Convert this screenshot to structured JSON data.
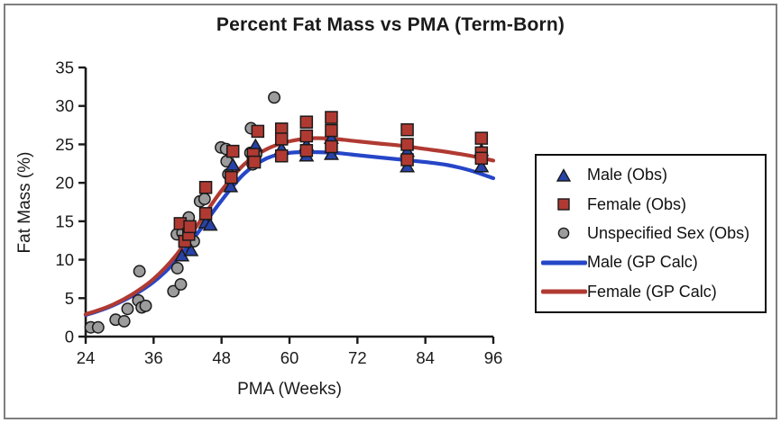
{
  "chart_data": {
    "type": "scatter",
    "title": "Percent Fat Mass vs PMA (Term-Born)",
    "xlabel": "PMA (Weeks)",
    "ylabel": "Fat Mass (%)",
    "xlim": [
      24,
      96
    ],
    "ylim": [
      0,
      35
    ],
    "x_ticks": [
      24,
      36,
      48,
      60,
      72,
      84,
      96
    ],
    "y_ticks": [
      0,
      5,
      10,
      15,
      20,
      25,
      30,
      35
    ],
    "grid": false,
    "legend_position": "right-outside",
    "axis_color": "#1a1a1a",
    "marker_edge_color": "#1a1a1a",
    "series": [
      {
        "name": "Male (Obs)",
        "type": "scatter",
        "marker": "triangle",
        "color": "#2742A8",
        "points": [
          [
            41.0,
            10.5
          ],
          [
            42.6,
            11.2
          ],
          [
            45.2,
            14.8
          ],
          [
            46.0,
            14.5
          ],
          [
            49.6,
            19.5
          ],
          [
            50.0,
            22.3
          ],
          [
            54.0,
            24.8
          ],
          [
            58.6,
            24.4
          ],
          [
            63.0,
            24.9
          ],
          [
            63.0,
            23.5
          ],
          [
            67.4,
            25.8
          ],
          [
            67.4,
            23.7
          ],
          [
            80.8,
            24.1
          ],
          [
            80.8,
            22.1
          ],
          [
            93.9,
            24.2
          ],
          [
            93.9,
            22.1
          ]
        ]
      },
      {
        "name": "Female (Obs)",
        "type": "scatter",
        "marker": "square",
        "color": "#B03A32",
        "points": [
          [
            40.7,
            14.7
          ],
          [
            41.5,
            12.4
          ],
          [
            42.2,
            13.3
          ],
          [
            42.4,
            14.3
          ],
          [
            45.2,
            19.4
          ],
          [
            45.2,
            16.0
          ],
          [
            49.7,
            20.7
          ],
          [
            50.0,
            24.1
          ],
          [
            53.6,
            23.7
          ],
          [
            53.8,
            22.7
          ],
          [
            54.4,
            26.7
          ],
          [
            58.6,
            27.0
          ],
          [
            58.6,
            25.7
          ],
          [
            58.6,
            23.5
          ],
          [
            63.0,
            27.9
          ],
          [
            63.0,
            26.1
          ],
          [
            63.0,
            24.2
          ],
          [
            67.4,
            28.5
          ],
          [
            67.4,
            26.8
          ],
          [
            67.4,
            24.7
          ],
          [
            80.8,
            26.9
          ],
          [
            80.8,
            25.0
          ],
          [
            80.8,
            23.0
          ],
          [
            93.9,
            25.8
          ],
          [
            93.9,
            23.9
          ],
          [
            93.9,
            23.2
          ]
        ]
      },
      {
        "name": "Unspecified Sex (Obs)",
        "type": "scatter",
        "marker": "circle",
        "color": "#9C9C9C",
        "points": [
          [
            24.9,
            1.2
          ],
          [
            26.2,
            1.2
          ],
          [
            29.3,
            2.2
          ],
          [
            30.8,
            2.0
          ],
          [
            31.4,
            3.6
          ],
          [
            33.3,
            4.7
          ],
          [
            33.9,
            3.8
          ],
          [
            34.6,
            4.0
          ],
          [
            33.5,
            8.5
          ],
          [
            39.5,
            5.9
          ],
          [
            40.2,
            8.9
          ],
          [
            40.8,
            6.8
          ],
          [
            40.1,
            13.3
          ],
          [
            41.1,
            13.5
          ],
          [
            42.2,
            15.5
          ],
          [
            43.1,
            12.4
          ],
          [
            44.2,
            17.6
          ],
          [
            45.0,
            17.9
          ],
          [
            47.9,
            24.6
          ],
          [
            48.8,
            24.4
          ],
          [
            48.9,
            22.8
          ],
          [
            49.2,
            21.1
          ],
          [
            53.2,
            27.1
          ],
          [
            53.1,
            23.9
          ],
          [
            54.1,
            23.7
          ],
          [
            53.5,
            22.4
          ],
          [
            57.3,
            31.1
          ]
        ]
      },
      {
        "name": "Male (GP Calc)",
        "type": "line",
        "color": "#2646C8",
        "points": [
          [
            24,
            2.8
          ],
          [
            28,
            3.8
          ],
          [
            32,
            5.2
          ],
          [
            36,
            7.1
          ],
          [
            40,
            9.9
          ],
          [
            44,
            13.7
          ],
          [
            48,
            17.7
          ],
          [
            52,
            21.2
          ],
          [
            56,
            23.2
          ],
          [
            60,
            23.9
          ],
          [
            64,
            24.0
          ],
          [
            68,
            23.9
          ],
          [
            72,
            23.6
          ],
          [
            76,
            23.3
          ],
          [
            80,
            23.0
          ],
          [
            84,
            22.7
          ],
          [
            88,
            22.3
          ],
          [
            92,
            21.6
          ],
          [
            96,
            20.6
          ]
        ]
      },
      {
        "name": "Female (GP Calc)",
        "type": "line",
        "color": "#B03A32",
        "points": [
          [
            24,
            2.9
          ],
          [
            28,
            3.9
          ],
          [
            32,
            5.4
          ],
          [
            36,
            7.5
          ],
          [
            40,
            10.6
          ],
          [
            44,
            14.8
          ],
          [
            48,
            19.0
          ],
          [
            52,
            22.4
          ],
          [
            56,
            24.4
          ],
          [
            60,
            25.4
          ],
          [
            64,
            25.8
          ],
          [
            68,
            25.7
          ],
          [
            72,
            25.4
          ],
          [
            76,
            25.1
          ],
          [
            80,
            24.8
          ],
          [
            84,
            24.4
          ],
          [
            88,
            24.0
          ],
          [
            92,
            23.5
          ],
          [
            96,
            22.9
          ]
        ]
      }
    ]
  }
}
